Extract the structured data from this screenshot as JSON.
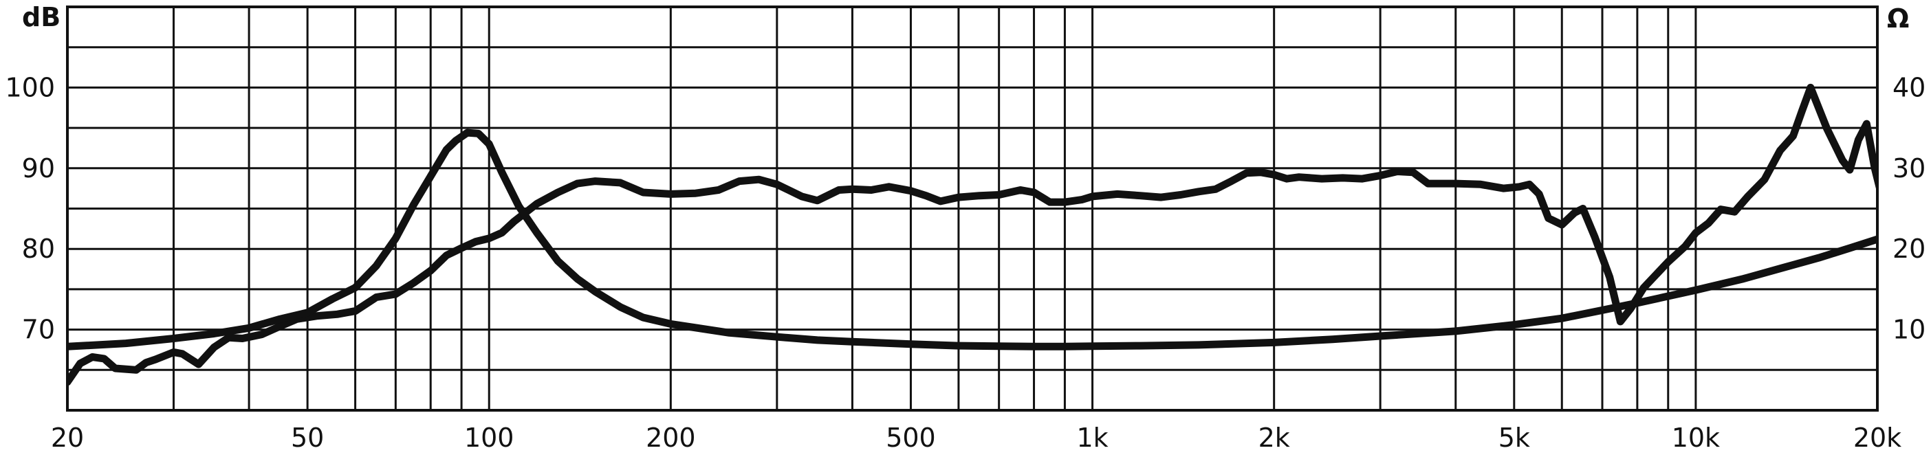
{
  "chart_data": {
    "type": "line",
    "title": "",
    "xlabel": "",
    "x_scale": "log",
    "xlim": [
      20,
      20000
    ],
    "x_ticks": [
      20,
      50,
      100,
      200,
      500,
      1000,
      2000,
      5000,
      10000,
      20000
    ],
    "x_tick_labels": [
      "20",
      "50",
      "100",
      "200",
      "500",
      "1k",
      "2k",
      "5k",
      "10k",
      "20k"
    ],
    "y_left": {
      "unit_label": "dB",
      "lim": [
        60,
        110
      ],
      "ticks": [
        70,
        80,
        90,
        100
      ],
      "tick_labels": [
        "70",
        "80",
        "90",
        "100"
      ]
    },
    "y_right": {
      "unit_label": "Ω",
      "lim": [
        0,
        50
      ],
      "ticks": [
        10,
        20,
        30,
        40
      ],
      "tick_labels": [
        "10",
        "20",
        "30",
        "40"
      ]
    },
    "grid": true,
    "legend": "none",
    "line_color": "#111111",
    "series": [
      {
        "axis": "left",
        "points": [
          [
            20,
            63.5
          ],
          [
            21,
            65.8
          ],
          [
            22,
            66.6
          ],
          [
            23,
            66.4
          ],
          [
            24,
            65.2
          ],
          [
            26,
            65.0
          ],
          [
            27,
            65.9
          ],
          [
            28,
            66.3
          ],
          [
            30,
            67.2
          ],
          [
            31,
            67.0
          ],
          [
            33,
            65.7
          ],
          [
            35,
            67.8
          ],
          [
            37,
            69.0
          ],
          [
            39,
            68.9
          ],
          [
            42,
            69.4
          ],
          [
            45,
            70.4
          ],
          [
            48,
            71.3
          ],
          [
            52,
            71.7
          ],
          [
            56,
            71.9
          ],
          [
            60,
            72.3
          ],
          [
            65,
            74.0
          ],
          [
            70,
            74.4
          ],
          [
            75,
            75.8
          ],
          [
            80,
            77.3
          ],
          [
            85,
            79.2
          ],
          [
            90,
            80.1
          ],
          [
            95,
            80.9
          ],
          [
            100,
            81.3
          ],
          [
            105,
            82.0
          ],
          [
            110,
            83.4
          ],
          [
            120,
            85.6
          ],
          [
            130,
            87.0
          ],
          [
            140,
            88.1
          ],
          [
            150,
            88.4
          ],
          [
            165,
            88.2
          ],
          [
            180,
            87.0
          ],
          [
            200,
            86.8
          ],
          [
            220,
            86.9
          ],
          [
            240,
            87.3
          ],
          [
            260,
            88.4
          ],
          [
            280,
            88.6
          ],
          [
            300,
            88.0
          ],
          [
            330,
            86.5
          ],
          [
            350,
            86.0
          ],
          [
            380,
            87.3
          ],
          [
            400,
            87.4
          ],
          [
            430,
            87.3
          ],
          [
            460,
            87.7
          ],
          [
            500,
            87.2
          ],
          [
            530,
            86.6
          ],
          [
            560,
            85.9
          ],
          [
            600,
            86.4
          ],
          [
            650,
            86.6
          ],
          [
            700,
            86.7
          ],
          [
            760,
            87.3
          ],
          [
            800,
            87.0
          ],
          [
            850,
            85.8
          ],
          [
            900,
            85.8
          ],
          [
            960,
            86.1
          ],
          [
            1000,
            86.5
          ],
          [
            1100,
            86.8
          ],
          [
            1200,
            86.6
          ],
          [
            1300,
            86.4
          ],
          [
            1400,
            86.7
          ],
          [
            1500,
            87.1
          ],
          [
            1600,
            87.4
          ],
          [
            1700,
            88.4
          ],
          [
            1800,
            89.4
          ],
          [
            1900,
            89.5
          ],
          [
            2000,
            89.2
          ],
          [
            2100,
            88.7
          ],
          [
            2200,
            88.9
          ],
          [
            2400,
            88.7
          ],
          [
            2600,
            88.8
          ],
          [
            2800,
            88.7
          ],
          [
            3000,
            89.1
          ],
          [
            3200,
            89.6
          ],
          [
            3400,
            89.5
          ],
          [
            3600,
            88.1
          ],
          [
            4000,
            88.1
          ],
          [
            4400,
            88.0
          ],
          [
            4800,
            87.5
          ],
          [
            5100,
            87.7
          ],
          [
            5300,
            88.0
          ],
          [
            5500,
            86.8
          ],
          [
            5700,
            83.8
          ],
          [
            6000,
            83.0
          ],
          [
            6300,
            84.5
          ],
          [
            6500,
            85.0
          ],
          [
            6800,
            81.5
          ],
          [
            7200,
            76.5
          ],
          [
            7500,
            71.0
          ],
          [
            7800,
            72.6
          ],
          [
            8200,
            75.2
          ],
          [
            9000,
            78.4
          ],
          [
            9600,
            80.3
          ],
          [
            10000,
            82.0
          ],
          [
            10500,
            83.2
          ],
          [
            11000,
            84.9
          ],
          [
            11600,
            84.6
          ],
          [
            12200,
            86.5
          ],
          [
            13000,
            88.6
          ],
          [
            13800,
            92.2
          ],
          [
            14500,
            94.0
          ],
          [
            15000,
            97.1
          ],
          [
            15500,
            100.0
          ],
          [
            16500,
            94.9
          ],
          [
            17500,
            91.0
          ],
          [
            18000,
            89.8
          ],
          [
            18600,
            93.5
          ],
          [
            19200,
            95.5
          ],
          [
            19800,
            90.0
          ],
          [
            20500,
            85.5
          ],
          [
            21000,
            84.5
          ],
          [
            21600,
            85.8
          ],
          [
            22200,
            83.7
          ],
          [
            23000,
            70.0
          ],
          [
            23300,
            69.5
          ]
        ]
      },
      {
        "axis": "right",
        "points": [
          [
            20,
            7.9
          ],
          [
            25,
            8.3
          ],
          [
            30,
            8.9
          ],
          [
            35,
            9.5
          ],
          [
            40,
            10.2
          ],
          [
            45,
            11.3
          ],
          [
            50,
            12.1
          ],
          [
            55,
            13.8
          ],
          [
            60,
            15.2
          ],
          [
            65,
            17.9
          ],
          [
            70,
            21.3
          ],
          [
            75,
            25.5
          ],
          [
            80,
            29.0
          ],
          [
            85,
            32.3
          ],
          [
            88,
            33.4
          ],
          [
            92,
            34.4
          ],
          [
            96,
            34.3
          ],
          [
            100,
            33.0
          ],
          [
            105,
            29.5
          ],
          [
            112,
            25.3
          ],
          [
            120,
            22.0
          ],
          [
            130,
            18.5
          ],
          [
            140,
            16.3
          ],
          [
            150,
            14.7
          ],
          [
            165,
            12.8
          ],
          [
            180,
            11.5
          ],
          [
            200,
            10.7
          ],
          [
            250,
            9.6
          ],
          [
            300,
            9.1
          ],
          [
            350,
            8.7
          ],
          [
            400,
            8.5
          ],
          [
            500,
            8.2
          ],
          [
            600,
            8.0
          ],
          [
            700,
            7.95
          ],
          [
            800,
            7.9
          ],
          [
            900,
            7.9
          ],
          [
            1000,
            7.95
          ],
          [
            1200,
            8.0
          ],
          [
            1500,
            8.1
          ],
          [
            2000,
            8.4
          ],
          [
            2500,
            8.8
          ],
          [
            3000,
            9.2
          ],
          [
            4000,
            9.8
          ],
          [
            5000,
            10.6
          ],
          [
            6000,
            11.4
          ],
          [
            7000,
            12.4
          ],
          [
            8000,
            13.3
          ],
          [
            10000,
            14.9
          ],
          [
            12000,
            16.3
          ],
          [
            14000,
            17.7
          ],
          [
            16000,
            18.9
          ],
          [
            18000,
            20.1
          ],
          [
            20000,
            21.2
          ],
          [
            22000,
            22.3
          ],
          [
            24000,
            23.2
          ]
        ]
      }
    ]
  }
}
